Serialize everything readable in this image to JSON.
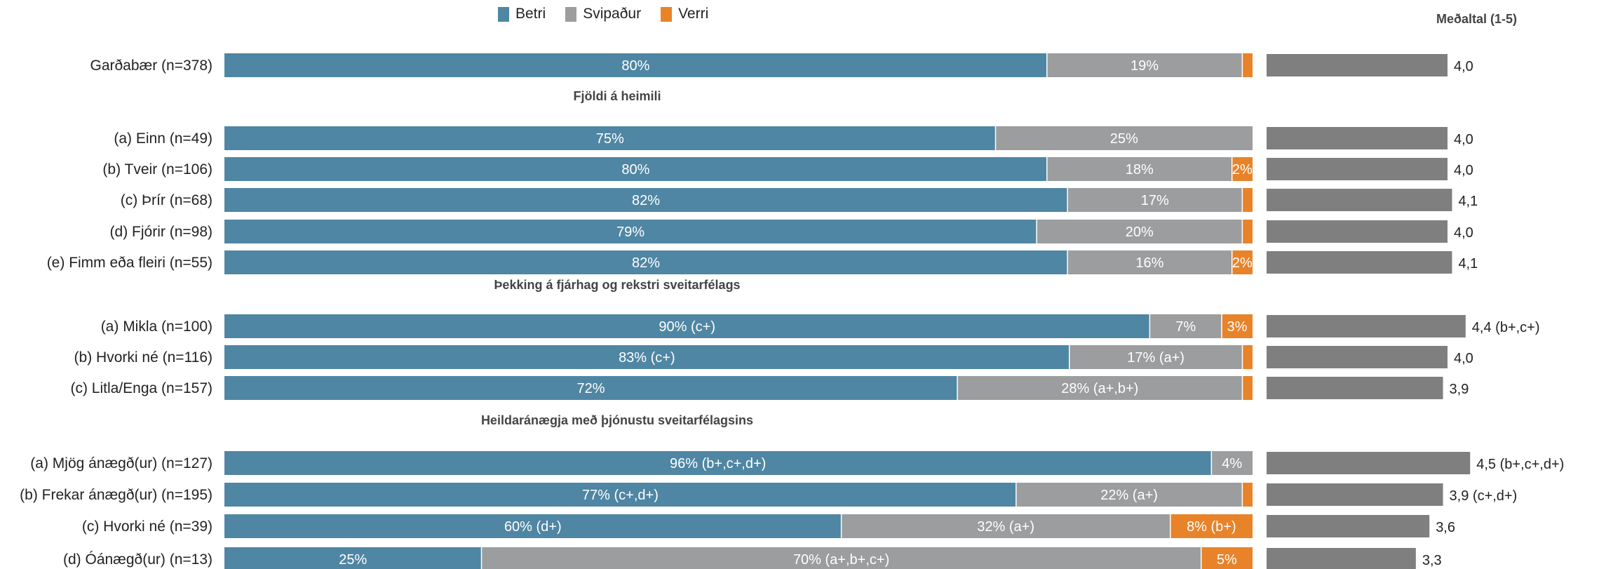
{
  "legend": [
    {
      "name": "Betri",
      "color": "#4f86a3"
    },
    {
      "name": "Svipaður",
      "color": "#9b9d9e"
    },
    {
      "name": "Verri",
      "color": "#e8832a"
    }
  ],
  "mean_title": "Meðaltal (1-5)",
  "colors": {
    "betri": "#4f86a3",
    "svipadur": "#9b9d9e",
    "verri": "#e8832a",
    "mean": "#7f7f7f"
  },
  "chart_data": [
    {
      "type": "bar",
      "stacked": true,
      "orientation": "horizontal",
      "xlim": [
        0,
        100
      ],
      "series_names": [
        "Betri",
        "Svipaður",
        "Verri"
      ],
      "groups": [
        {
          "title": "",
          "rows": [
            {
              "label": "Garðabær (n=378)",
              "values": [
                80,
                19,
                1
              ],
              "texts": [
                "80%",
                "19%",
                ""
              ]
            }
          ]
        },
        {
          "title": "Fjöldi á heimili",
          "rows": [
            {
              "label": "(a) Einn (n=49)",
              "values": [
                75,
                25,
                0
              ],
              "texts": [
                "75%",
                "25%",
                ""
              ]
            },
            {
              "label": "(b) Tveir (n=106)",
              "values": [
                80,
                18,
                2
              ],
              "texts": [
                "80%",
                "18%",
                "2%"
              ]
            },
            {
              "label": "(c) Þrír (n=68)",
              "values": [
                82,
                17,
                1
              ],
              "texts": [
                "82%",
                "17%",
                ""
              ]
            },
            {
              "label": "(d) Fjórir (n=98)",
              "values": [
                79,
                20,
                1
              ],
              "texts": [
                "79%",
                "20%",
                ""
              ]
            },
            {
              "label": "(e) Fimm eða fleiri (n=55)",
              "values": [
                82,
                16,
                2
              ],
              "texts": [
                "82%",
                "16%",
                "2%"
              ]
            }
          ]
        },
        {
          "title": "Þekking á fjárhag og rekstri sveitarfélags",
          "rows": [
            {
              "label": "(a) Mikla (n=100)",
              "values": [
                90,
                7,
                3
              ],
              "texts": [
                "90% (c+)",
                "7%",
                "3%"
              ]
            },
            {
              "label": "(b) Hvorki né (n=116)",
              "values": [
                83,
                17,
                1
              ],
              "texts": [
                "83% (c+)",
                "17% (a+)",
                ""
              ]
            },
            {
              "label": "(c) Litla/Enga (n=157)",
              "values": [
                72,
                28,
                1
              ],
              "texts": [
                "72%",
                "28% (a+,b+)",
                ""
              ]
            }
          ]
        },
        {
          "title": "Heildaránægja með þjónustu sveitarfélagsins",
          "rows": [
            {
              "label": "(a) Mjög ánægð(ur) (n=127)",
              "values": [
                96,
                4,
                0
              ],
              "texts": [
                "96% (b+,c+,d+)",
                "4%",
                ""
              ]
            },
            {
              "label": "(b) Frekar ánægð(ur) (n=195)",
              "values": [
                77,
                22,
                1
              ],
              "texts": [
                "77% (c+,d+)",
                "22% (a+)",
                ""
              ]
            },
            {
              "label": "(c) Hvorki né (n=39)",
              "values": [
                60,
                32,
                8
              ],
              "texts": [
                "60% (d+)",
                "32% (a+)",
                "8% (b+)"
              ]
            },
            {
              "label": "(d) Óánægð(ur) (n=13)",
              "values": [
                25,
                70,
                5
              ],
              "texts": [
                "25%",
                "70% (a+,b+,c+)",
                "5%"
              ]
            }
          ]
        }
      ]
    },
    {
      "type": "bar",
      "orientation": "horizontal",
      "title": "Meðaltal (1-5)",
      "xlim": [
        1,
        5
      ],
      "values": [
        4.0,
        4.0,
        4.0,
        4.1,
        4.0,
        4.1,
        4.4,
        4.0,
        3.9,
        4.5,
        3.9,
        3.6,
        3.3
      ],
      "labels": [
        "4,0",
        "4,0",
        "4,0",
        "4,1",
        "4,0",
        "4,1",
        "4,4 (b+,c+)",
        "4,0",
        "3,9",
        "4,5 (b+,c+,d+)",
        "3,9 (c+,d+)",
        "3,6",
        "3,3"
      ]
    }
  ]
}
